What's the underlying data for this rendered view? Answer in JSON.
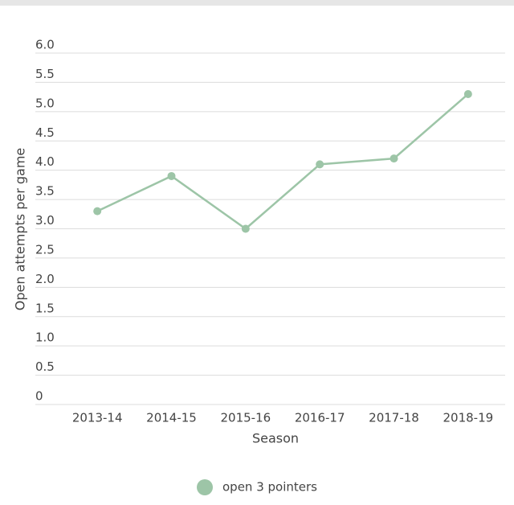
{
  "chart_data": {
    "type": "line",
    "x_label": "Season",
    "y_label": "Open attempts per game",
    "categories": [
      "2013-14",
      "2014-15",
      "2015-16",
      "2016-17",
      "2017-18",
      "2018-19"
    ],
    "series": [
      {
        "name": "open 3 pointers",
        "color": "#9dc5a7",
        "values": [
          3.3,
          3.9,
          3.0,
          4.1,
          4.2,
          5.3
        ]
      }
    ],
    "ylim": [
      0,
      6
    ],
    "yticks": [
      0,
      0.5,
      {
        "value": 1,
        "label": "1.0"
      },
      1.5,
      {
        "value": 2,
        "label": "2.0"
      },
      2.5,
      {
        "value": 3,
        "label": "3.0"
      },
      3.5,
      {
        "value": 4,
        "label": "4.0"
      },
      4.5,
      {
        "value": 5,
        "label": "5.0"
      },
      5.5,
      {
        "value": 6,
        "label": "6.0"
      }
    ],
    "grid": true,
    "legend": "bottom"
  }
}
